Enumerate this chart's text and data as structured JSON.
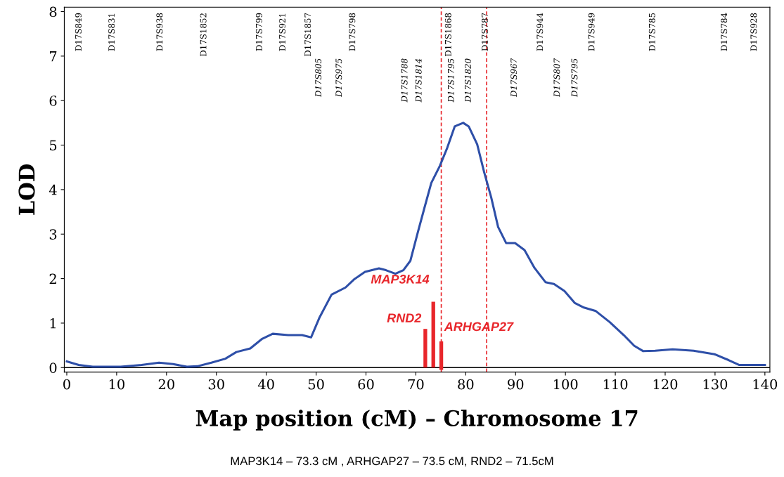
{
  "chart_data": {
    "type": "line",
    "xlabel": "Map position (cM) – Chromosome 17",
    "ylabel": "LOD",
    "xlim": [
      -0.5,
      141
    ],
    "ylim": [
      -0.1,
      8.1
    ],
    "xticks": [
      0,
      10,
      20,
      30,
      40,
      50,
      60,
      70,
      80,
      90,
      100,
      110,
      120,
      130,
      140
    ],
    "yticks": [
      0,
      1,
      2,
      3,
      4,
      5,
      6,
      7,
      8
    ],
    "grid": false,
    "legend": false,
    "marker": "none",
    "line_style": "solid",
    "series": [
      {
        "color": "#2e4fa8",
        "x": [
          0,
          2.4,
          5.2,
          10.8,
          15,
          18.5,
          21.3,
          24.1,
          26.2,
          29,
          31.8,
          34,
          36.8,
          39.1,
          41.3,
          44.4,
          47.2,
          49,
          50.7,
          53.1,
          55.9,
          57.7,
          59.8,
          62.6,
          64,
          65.9,
          67.5,
          68.9,
          70.4,
          71.7,
          73.1,
          74.8,
          76.3,
          77.8,
          79.5,
          80.6,
          82.3,
          83.7,
          85.1,
          86.5,
          88.1,
          89.9,
          91.8,
          93.8,
          96,
          97.7,
          99.8,
          101.9,
          103.7,
          106.1,
          108.9,
          111.7,
          113.8,
          115.6,
          118,
          121.5,
          125.7,
          129.9,
          132.7,
          134.8,
          140
        ],
        "values": [
          0.14,
          0.06,
          0.02,
          0.02,
          0.06,
          0.11,
          0.08,
          0.02,
          0.03,
          0.11,
          0.2,
          0.35,
          0.43,
          0.64,
          0.76,
          0.73,
          0.73,
          0.68,
          1.13,
          1.64,
          1.8,
          1.99,
          2.15,
          2.23,
          2.19,
          2.11,
          2.19,
          2.4,
          3.04,
          3.58,
          4.15,
          4.53,
          4.94,
          5.42,
          5.5,
          5.42,
          5.02,
          4.39,
          3.83,
          3.16,
          2.8,
          2.8,
          2.64,
          2.24,
          1.92,
          1.88,
          1.72,
          1.45,
          1.35,
          1.27,
          1.02,
          0.73,
          0.49,
          0.37,
          0.38,
          0.41,
          0.38,
          0.3,
          0.17,
          0.06,
          0.06
        ]
      },
      {
        "type": "bar",
        "name": "RND2",
        "color": "#e8262b",
        "x": [
          71.9
        ],
        "values": [
          0.87
        ]
      },
      {
        "type": "bar",
        "name": "MAP3K14",
        "color": "#e8262b",
        "x": [
          73.5
        ],
        "values": [
          1.48
        ]
      },
      {
        "type": "bar",
        "name": "ARHGAP27",
        "color": "#e8262b",
        "x": [
          75.1
        ],
        "base": [
          -0.05
        ],
        "values": [
          0.64
        ]
      }
    ],
    "ref_lines": [
      {
        "axis": "y",
        "value": 0,
        "color": "#000000",
        "line_style": "solid"
      },
      {
        "axis": "x",
        "value": 75.1,
        "color": "#e8262b",
        "line_style": "dashed"
      },
      {
        "axis": "x",
        "value": 84.2,
        "color": "#e8262b",
        "line_style": "dashed"
      }
    ],
    "annotations": [
      "D17S849",
      "D17S831",
      "D17S938",
      "D17S1852",
      "D17S799",
      "D17S921",
      "D17S1857",
      "D17S805",
      "D17S975",
      "D17S798",
      "D17S1788",
      "D17S1814",
      "D17S1868",
      "D17S1795",
      "D17S1820",
      "D17S787",
      "D17S967",
      "D17S944",
      "D17S807",
      "D17S795",
      "D17S949",
      "D17S785",
      "D17S784",
      "D17S928",
      "MAP3K14 – 73.3 cM , ARHGAP27 – 73.5 cM, RND2 – 71.5cM"
    ]
  }
}
